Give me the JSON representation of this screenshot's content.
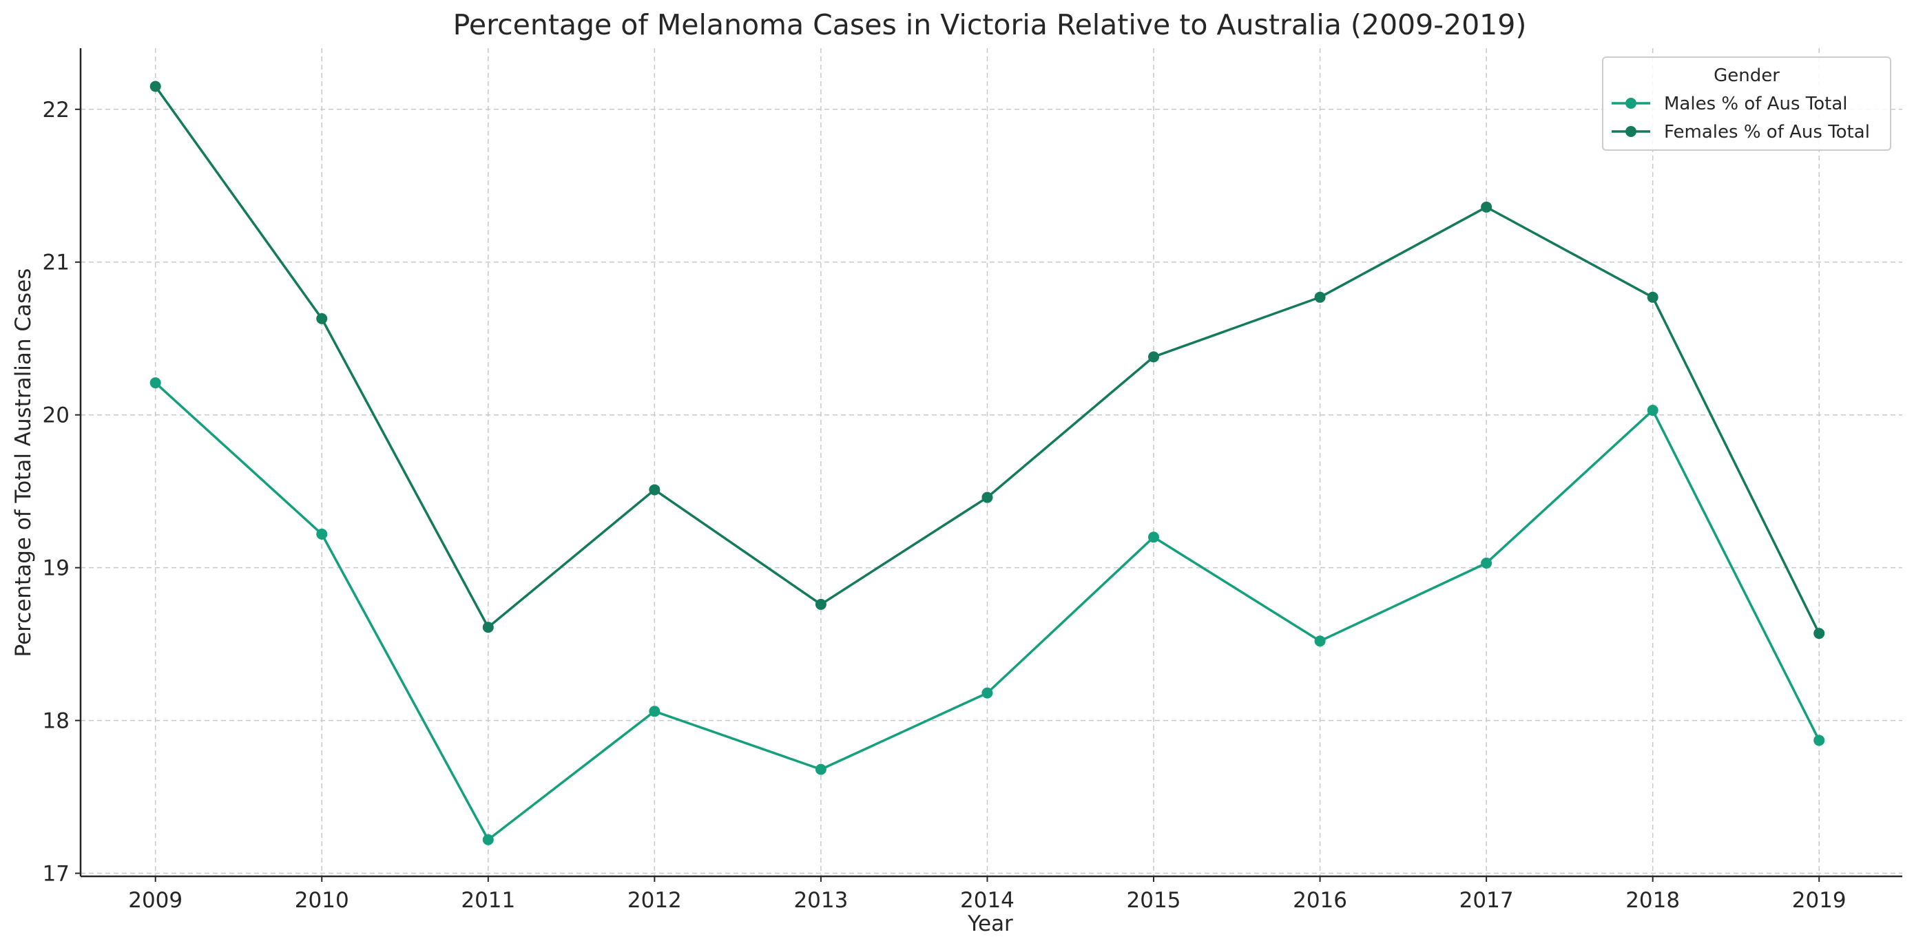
{
  "chart_data": {
    "type": "line",
    "title": "Percentage of Melanoma Cases in Victoria Relative to Australia (2009-2019)",
    "xlabel": "Year",
    "ylabel": "Percentage of Total Australian Cases",
    "x": [
      2009,
      2010,
      2011,
      2012,
      2013,
      2014,
      2015,
      2016,
      2017,
      2018,
      2019
    ],
    "x_tick_labels": [
      "2009",
      "2010",
      "2011",
      "2012",
      "2013",
      "2014",
      "2015",
      "2016",
      "2017",
      "2018",
      "2019"
    ],
    "y_tick_values": [
      17,
      18,
      19,
      20,
      21,
      22
    ],
    "y_tick_labels": [
      "17",
      "18",
      "19",
      "20",
      "21",
      "22"
    ],
    "xlim": [
      2008.55,
      2019.5
    ],
    "ylim": [
      16.98,
      22.4
    ],
    "grid": true,
    "legend": {
      "title": "Gender",
      "placement": "top-right"
    },
    "series": [
      {
        "name": "Males % of Aus Total",
        "color": "#14a07d",
        "values": [
          20.21,
          19.22,
          17.22,
          18.06,
          17.68,
          18.18,
          19.2,
          18.52,
          19.03,
          20.03,
          17.87
        ]
      },
      {
        "name": "Females % of Aus Total",
        "color": "#137a5c",
        "values": [
          22.15,
          20.63,
          18.61,
          19.51,
          18.76,
          19.46,
          20.38,
          20.77,
          21.36,
          20.77,
          18.57
        ]
      }
    ]
  }
}
